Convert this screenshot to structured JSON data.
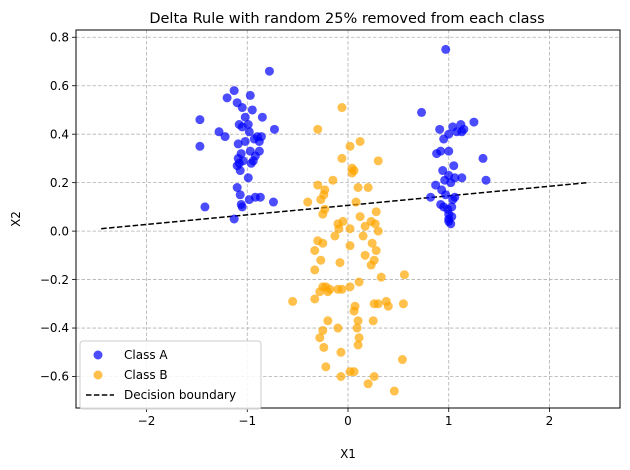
{
  "chart_data": {
    "type": "scatter",
    "title": "Delta Rule with random 25% removed from each class",
    "xlabel": "X1",
    "ylabel": "X2",
    "xlim": [
      -2.7,
      2.7
    ],
    "ylim": [
      -0.73,
      0.83
    ],
    "xticks": [
      -2,
      -1,
      0,
      1,
      2
    ],
    "yticks": [
      -0.6,
      -0.4,
      -0.2,
      0.0,
      0.2,
      0.4,
      0.6,
      0.8
    ],
    "xtick_labels": [
      "−2",
      "−1",
      "0",
      "1",
      "2"
    ],
    "ytick_labels": [
      "−0.6",
      "−0.4",
      "−0.2",
      "0.0",
      "0.2",
      "0.4",
      "0.6",
      "0.8"
    ],
    "grid": true,
    "legend_position": "lower-left",
    "series": [
      {
        "name": "Class A",
        "kind": "scatter",
        "color": "#0000ff",
        "points": [
          [
            -1.13,
            0.58
          ],
          [
            -1.1,
            0.53
          ],
          [
            -1.05,
            0.51
          ],
          [
            -0.97,
            0.56
          ],
          [
            -0.95,
            0.5
          ],
          [
            -1.2,
            0.55
          ],
          [
            -0.78,
            0.66
          ],
          [
            -0.85,
            0.47
          ],
          [
            -1.02,
            0.47
          ],
          [
            -1.47,
            0.46
          ],
          [
            -1.28,
            0.41
          ],
          [
            -1.22,
            0.39
          ],
          [
            -1.08,
            0.44
          ],
          [
            -1.05,
            0.43
          ],
          [
            -0.99,
            0.44
          ],
          [
            -0.98,
            0.41
          ],
          [
            -0.9,
            0.39
          ],
          [
            -0.86,
            0.39
          ],
          [
            -0.88,
            0.37
          ],
          [
            -0.93,
            0.38
          ],
          [
            -0.73,
            0.42
          ],
          [
            -1.02,
            0.37
          ],
          [
            -1.09,
            0.36
          ],
          [
            -1.47,
            0.35
          ],
          [
            -0.88,
            0.33
          ],
          [
            -0.97,
            0.33
          ],
          [
            -1.06,
            0.32
          ],
          [
            -0.92,
            0.31
          ],
          [
            -1.09,
            0.3
          ],
          [
            -1.08,
            0.28
          ],
          [
            -1.04,
            0.29
          ],
          [
            -0.94,
            0.29
          ],
          [
            -0.96,
            0.28
          ],
          [
            -1.1,
            0.27
          ],
          [
            -1.07,
            0.25
          ],
          [
            -0.99,
            0.22
          ],
          [
            -1.1,
            0.18
          ],
          [
            -1.07,
            0.15
          ],
          [
            -0.92,
            0.14
          ],
          [
            -0.87,
            0.14
          ],
          [
            -0.98,
            0.13
          ],
          [
            -0.74,
            0.12
          ],
          [
            -1.06,
            0.11
          ],
          [
            -1.05,
            0.1
          ],
          [
            -1.42,
            0.1
          ],
          [
            -1.13,
            0.05
          ],
          [
            0.97,
            0.75
          ],
          [
            0.73,
            0.49
          ],
          [
            1.12,
            0.44
          ],
          [
            1.25,
            0.45
          ],
          [
            1.08,
            0.41
          ],
          [
            1.04,
            0.43
          ],
          [
            0.91,
            0.42
          ],
          [
            1.13,
            0.41
          ],
          [
            1.15,
            0.42
          ],
          [
            1.0,
            0.4
          ],
          [
            0.95,
            0.38
          ],
          [
            1.0,
            0.33
          ],
          [
            0.88,
            0.32
          ],
          [
            0.92,
            0.33
          ],
          [
            1.34,
            0.3
          ],
          [
            0.94,
            0.25
          ],
          [
            1.05,
            0.27
          ],
          [
            1.0,
            0.23
          ],
          [
            1.06,
            0.22
          ],
          [
            1.13,
            0.22
          ],
          [
            0.96,
            0.21
          ],
          [
            1.02,
            0.2
          ],
          [
            1.37,
            0.21
          ],
          [
            0.87,
            0.19
          ],
          [
            0.93,
            0.17
          ],
          [
            0.82,
            0.14
          ],
          [
            0.97,
            0.15
          ],
          [
            1.06,
            0.14
          ],
          [
            1.04,
            0.13
          ],
          [
            0.92,
            0.11
          ],
          [
            1.03,
            0.1
          ],
          [
            0.95,
            0.1
          ],
          [
            0.99,
            0.09
          ],
          [
            1.0,
            0.07
          ],
          [
            1.03,
            0.06
          ],
          [
            1.0,
            0.05
          ],
          [
            1.0,
            0.04
          ],
          [
            1.02,
            0.03
          ]
        ]
      },
      {
        "name": "Class B",
        "kind": "scatter",
        "color": "#ffa500",
        "points": [
          [
            -0.06,
            0.51
          ],
          [
            0.12,
            0.37
          ],
          [
            -0.3,
            0.42
          ],
          [
            -0.06,
            0.3
          ],
          [
            0.02,
            0.35
          ],
          [
            0.3,
            0.29
          ],
          [
            0.04,
            0.26
          ],
          [
            0.06,
            0.25
          ],
          [
            0.04,
            0.24
          ],
          [
            -0.15,
            0.21
          ],
          [
            0.2,
            0.18
          ],
          [
            0.1,
            0.18
          ],
          [
            -0.3,
            0.19
          ],
          [
            -0.23,
            0.17
          ],
          [
            -0.4,
            0.12
          ],
          [
            -0.24,
            0.15
          ],
          [
            -0.27,
            0.13
          ],
          [
            -0.23,
            0.09
          ],
          [
            0.08,
            0.12
          ],
          [
            0.28,
            0.08
          ],
          [
            -0.25,
            0.07
          ],
          [
            0.12,
            0.06
          ],
          [
            0.23,
            0.04
          ],
          [
            -0.05,
            0.04
          ],
          [
            -0.1,
            0.03
          ],
          [
            0.17,
            0.02
          ],
          [
            0.27,
            0.03
          ],
          [
            -0.09,
            0.01
          ],
          [
            0.02,
            0.01
          ],
          [
            0.3,
            0.0
          ],
          [
            -0.13,
            -0.02
          ],
          [
            -0.3,
            -0.04
          ],
          [
            0.15,
            -0.02
          ],
          [
            -0.25,
            -0.05
          ],
          [
            0.24,
            -0.05
          ],
          [
            0.02,
            -0.06
          ],
          [
            -0.33,
            -0.08
          ],
          [
            0.28,
            -0.08
          ],
          [
            0.17,
            -0.1
          ],
          [
            -0.27,
            -0.12
          ],
          [
            0.26,
            -0.12
          ],
          [
            -0.08,
            -0.13
          ],
          [
            0.23,
            -0.14
          ],
          [
            -0.33,
            -0.16
          ],
          [
            0.56,
            -0.18
          ],
          [
            0.33,
            -0.19
          ],
          [
            0.11,
            -0.21
          ],
          [
            -0.25,
            -0.23
          ],
          [
            -0.22,
            -0.23
          ],
          [
            0.02,
            -0.23
          ],
          [
            -0.18,
            -0.24
          ],
          [
            -0.2,
            -0.25
          ],
          [
            -0.28,
            -0.25
          ],
          [
            -0.1,
            -0.24
          ],
          [
            -0.06,
            -0.24
          ],
          [
            -0.33,
            -0.28
          ],
          [
            -0.55,
            -0.29
          ],
          [
            0.55,
            -0.3
          ],
          [
            0.38,
            -0.29
          ],
          [
            0.26,
            -0.3
          ],
          [
            0.3,
            -0.3
          ],
          [
            0.07,
            -0.31
          ],
          [
            0.06,
            -0.33
          ],
          [
            0.1,
            -0.37
          ],
          [
            0.4,
            -0.31
          ],
          [
            -0.2,
            -0.37
          ],
          [
            0.25,
            -0.37
          ],
          [
            -0.1,
            -0.4
          ],
          [
            0.09,
            -0.4
          ],
          [
            -0.25,
            -0.41
          ],
          [
            -0.28,
            -0.44
          ],
          [
            0.11,
            -0.44
          ],
          [
            0.1,
            -0.47
          ],
          [
            -0.07,
            -0.5
          ],
          [
            -0.22,
            -0.56
          ],
          [
            0.06,
            -0.58
          ],
          [
            0.02,
            -0.58
          ],
          [
            -0.07,
            -0.6
          ],
          [
            0.26,
            -0.6
          ],
          [
            0.2,
            -0.63
          ],
          [
            0.46,
            -0.66
          ],
          [
            0.54,
            -0.53
          ],
          [
            -0.24,
            -0.48
          ]
        ]
      },
      {
        "name": "Decision boundary",
        "kind": "line",
        "color": "#000000",
        "dash": "dashed",
        "points": [
          [
            -2.45,
            0.01
          ],
          [
            2.38,
            0.2
          ]
        ]
      }
    ]
  }
}
